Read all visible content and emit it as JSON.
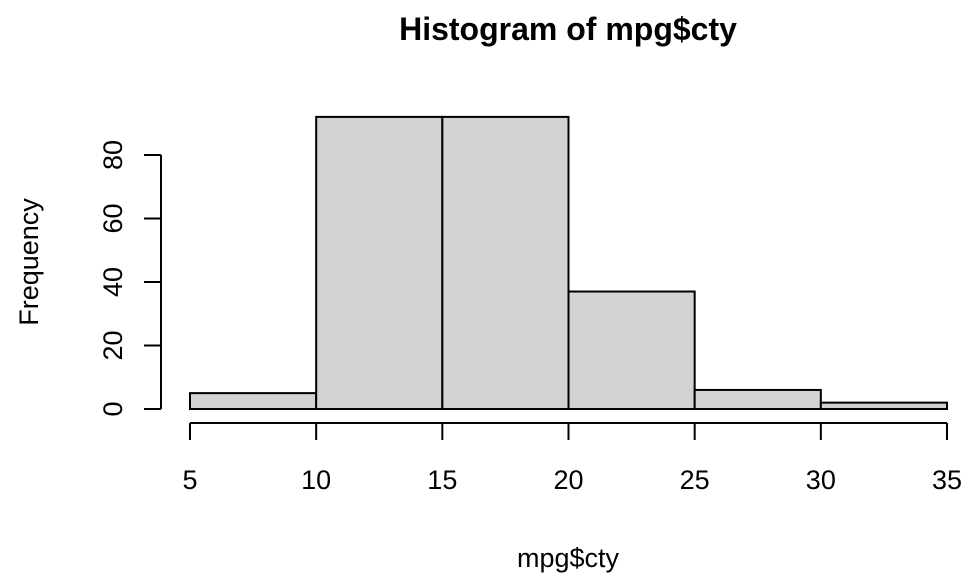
{
  "chart_data": {
    "type": "bar",
    "title": "Histogram of mpg$cty",
    "xlabel": "mpg$cty",
    "ylabel": "Frequency",
    "bins": [
      {
        "from": 5,
        "to": 10,
        "count": 5
      },
      {
        "from": 10,
        "to": 15,
        "count": 92
      },
      {
        "from": 15,
        "to": 20,
        "count": 92
      },
      {
        "from": 20,
        "to": 25,
        "count": 37
      },
      {
        "from": 25,
        "to": 30,
        "count": 6
      },
      {
        "from": 30,
        "to": 35,
        "count": 2
      }
    ],
    "xticks": [
      5,
      10,
      15,
      20,
      25,
      30,
      35
    ],
    "yticks": [
      0,
      20,
      40,
      60,
      80
    ],
    "xlim": [
      5,
      35
    ],
    "ylim": [
      0,
      92
    ],
    "grid": false,
    "bar_color": "#d3d3d3",
    "edge_color": "#000000"
  }
}
